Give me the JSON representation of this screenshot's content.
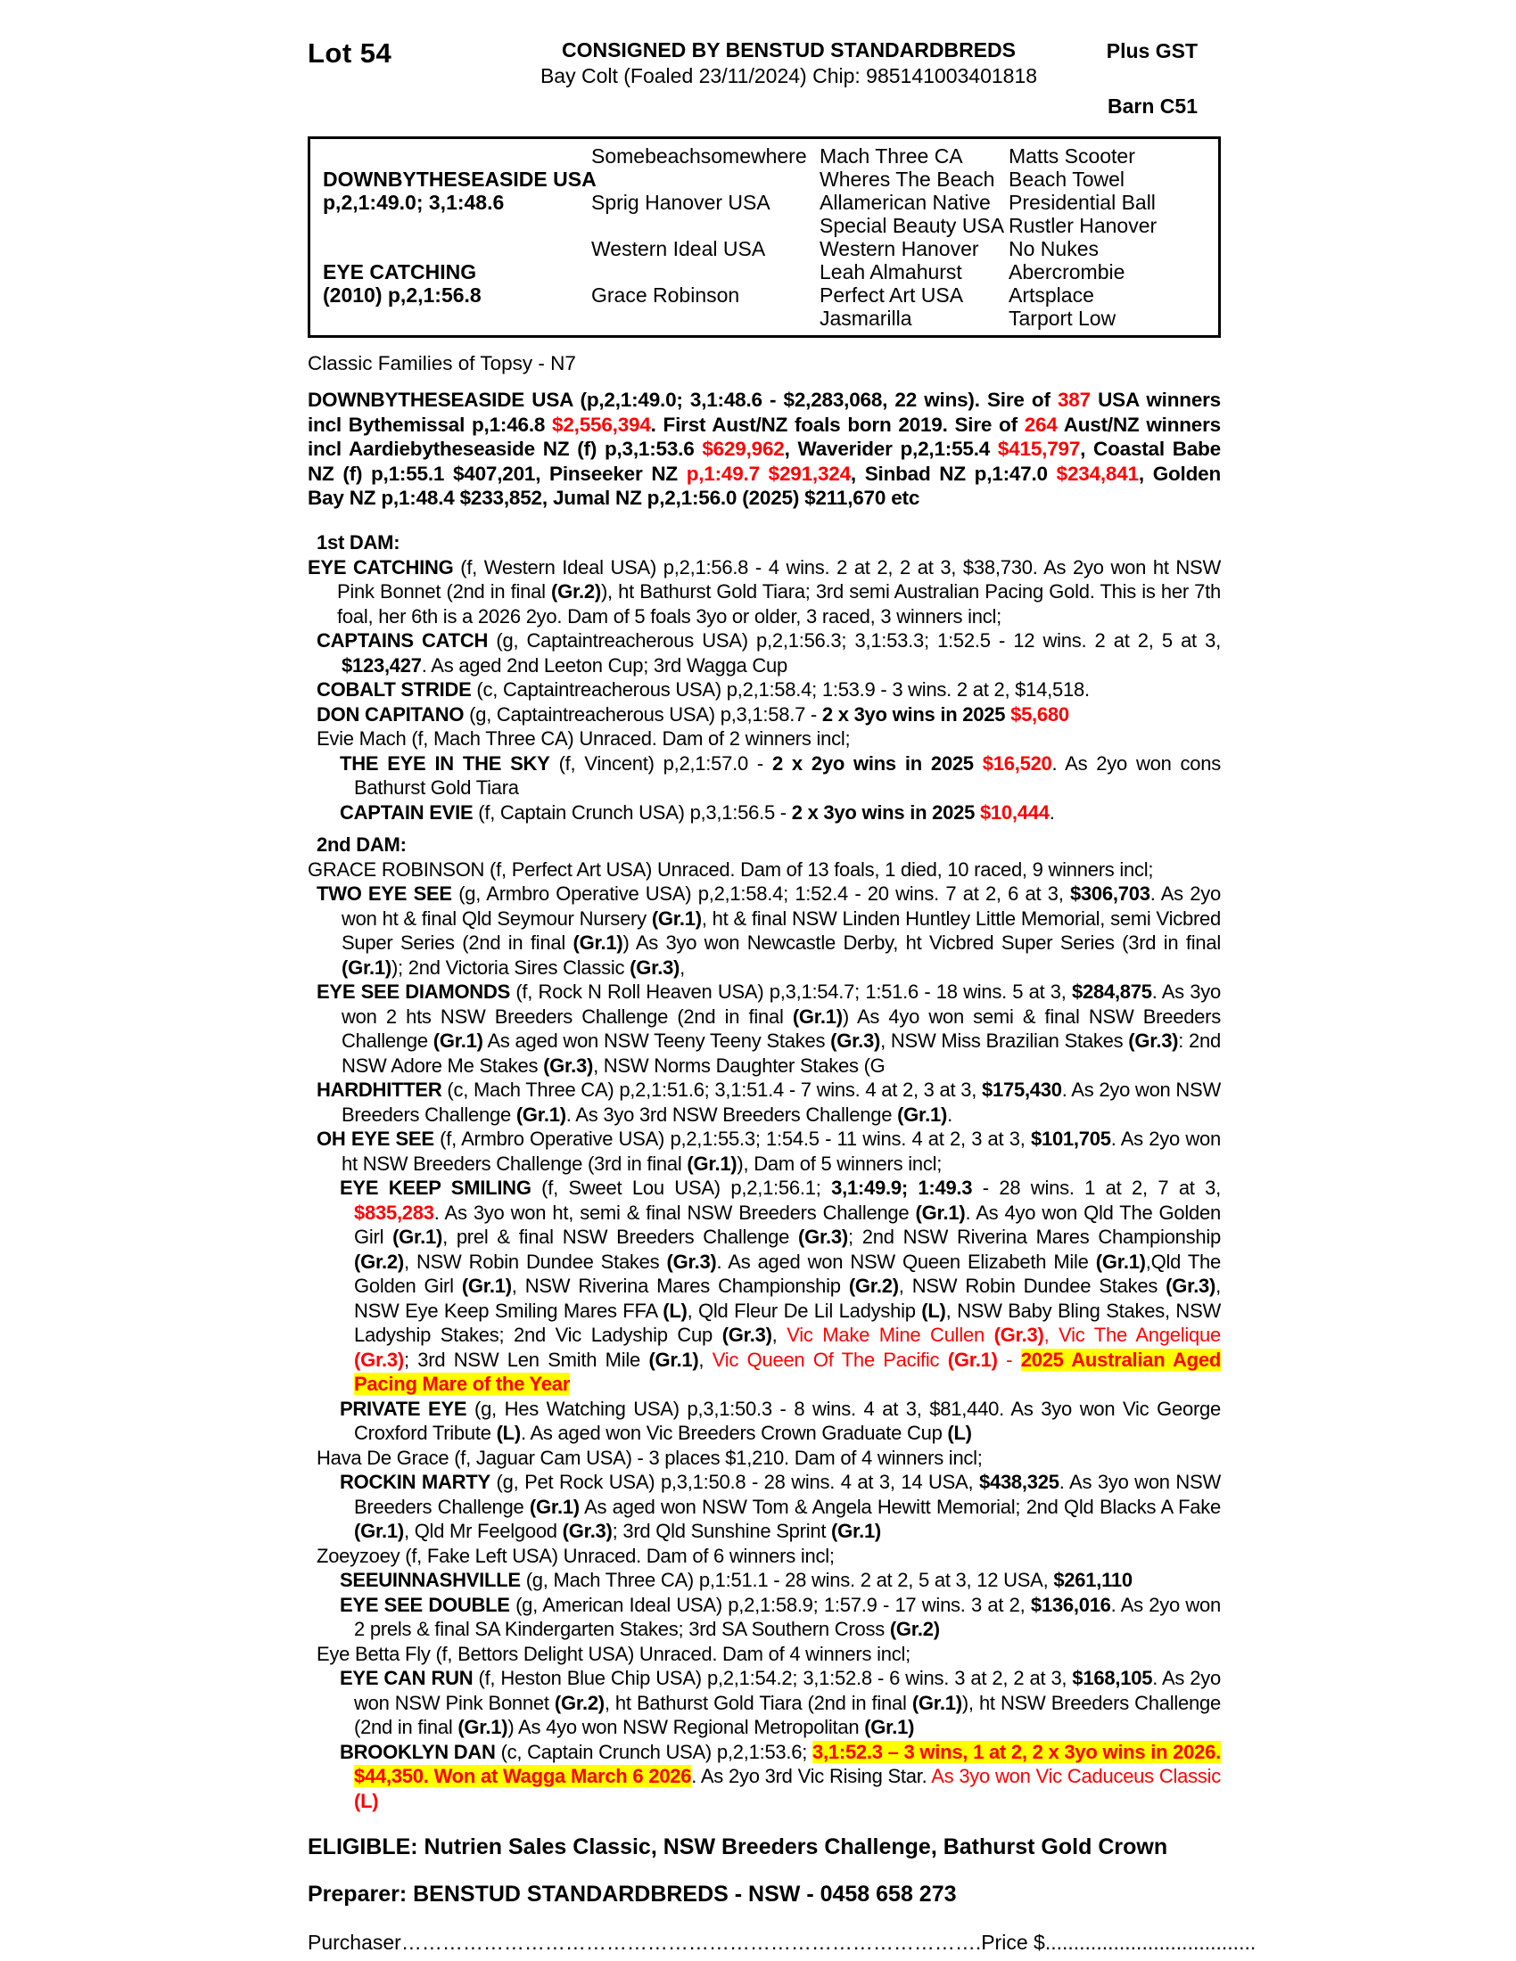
{
  "colors": {
    "text": "#000000",
    "accent_red": "#ff0000",
    "highlight_yellow": "#ffff00"
  },
  "header": {
    "lot": "Lot 54",
    "consigned": "CONSIGNED BY BENSTUD STANDARDBREDS",
    "subtitle": "Bay Colt (Foaled 23/11/2024) Chip: 985141003401818",
    "plus_gst": "Plus GST",
    "barn": "Barn C51"
  },
  "pedigree_box": {
    "rows": [
      [
        "",
        "Somebeachsomewhere",
        "Mach Three CA",
        "Matts Scooter"
      ],
      [
        "DOWNBYTHESEASIDE USA",
        "",
        "Wheres The Beach",
        "Beach Towel"
      ],
      [
        "p,2,1:49.0; 3,1:48.6",
        "Sprig Hanover USA",
        "Allamerican Native",
        "Presidential Ball"
      ],
      [
        "",
        "",
        "Special Beauty USA",
        "Rustler Hanover"
      ],
      [
        "",
        "Western Ideal USA",
        "Western Hanover",
        "No Nukes"
      ],
      [
        "EYE CATCHING",
        "",
        "Leah Almahurst",
        "Abercrombie"
      ],
      [
        "(2010) p,2,1:56.8",
        "Grace Robinson",
        "Perfect Art USA",
        "Artsplace"
      ],
      [
        "",
        "",
        "Jasmarilla",
        "Tarport Low"
      ]
    ]
  },
  "family_line": "Classic Families of Topsy - N7",
  "sire_paragraph": [
    {
      "t": "DOWNBYTHESEASIDE USA (p,2,1:49.0; 3,1:48.6 - $2,283,068, 22 wins). Sire of ",
      "s": "b"
    },
    {
      "t": "387",
      "s": "rb"
    },
    {
      "t": " USA winners incl Bythemissal p,1:46.8 ",
      "s": "b"
    },
    {
      "t": "$2,556,394",
      "s": "rb"
    },
    {
      "t": ". First Aust/NZ foals born 2019. Sire of ",
      "s": "b"
    },
    {
      "t": "264",
      "s": "rb"
    },
    {
      "t": " Aust/NZ winners incl Aardiebytheseaside NZ (f) p,3,1:53.6 ",
      "s": "b"
    },
    {
      "t": "$629,962",
      "s": "rb"
    },
    {
      "t": ", Waverider p,2,1:55.4 ",
      "s": "b"
    },
    {
      "t": "$415,797",
      "s": "rb"
    },
    {
      "t": ", Coastal Babe NZ (f) p,1:55.1 $407,201, Pinseeker NZ ",
      "s": "b"
    },
    {
      "t": "p,1:49.7 $291,324",
      "s": "rb"
    },
    {
      "t": ", Sinbad NZ p,1:47.0 ",
      "s": "b"
    },
    {
      "t": "$234,841",
      "s": "rb"
    },
    {
      "t": ", Golden Bay NZ p,1:48.4 $233,852, Jumal NZ p,2,1:56.0 (2025) $211,670 etc",
      "s": "b"
    }
  ],
  "body": [
    {
      "cls": "hd",
      "spans": [
        {
          "t": "1st DAM:",
          "s": "b"
        }
      ]
    },
    {
      "cls": "l0",
      "spans": [
        {
          "t": "EYE CATCHING",
          "s": "b"
        },
        {
          "t": " (f, Western Ideal USA) p,2,1:56.8 - 4 wins. 2 at 2, 2 at 3, $38,730. As 2yo won ht NSW Pink Bonnet (2nd in final ",
          "s": ""
        },
        {
          "t": "(Gr.2)",
          "s": "b"
        },
        {
          "t": "), ht Bathurst Gold Tiara; 3rd semi Australian Pacing Gold. This is her 7th foal, her 6th is a 2026 2yo. Dam of 5 foals 3yo or older, 3 raced, 3 winners incl;",
          "s": ""
        }
      ]
    },
    {
      "cls": "l1",
      "spans": [
        {
          "t": "CAPTAINS CATCH",
          "s": "b"
        },
        {
          "t": " (g, Captaintreacherous USA) p,2,1:56.3; 3,1:53.3; 1:52.5 - 12 wins. 2 at 2, 5 at 3, ",
          "s": ""
        },
        {
          "t": "$123,427",
          "s": "b"
        },
        {
          "t": ". As aged 2nd Leeton Cup; 3rd Wagga Cup",
          "s": ""
        }
      ]
    },
    {
      "cls": "l1",
      "spans": [
        {
          "t": "COBALT STRIDE",
          "s": "b"
        },
        {
          "t": " (c, Captaintreacherous USA) p,2,1:58.4; 1:53.9 - 3 wins. 2 at 2, $14,518.",
          "s": ""
        }
      ]
    },
    {
      "cls": "l1",
      "spans": [
        {
          "t": "DON CAPITANO",
          "s": "b"
        },
        {
          "t": " (g, Captaintreacherous USA) p,3,1:58.7 - ",
          "s": ""
        },
        {
          "t": "2 x 3yo wins in 2025 ",
          "s": "b"
        },
        {
          "t": "$5,680",
          "s": "rb"
        }
      ]
    },
    {
      "cls": "l1",
      "spans": [
        {
          "t": "Evie Mach (f, Mach Three CA) Unraced. Dam of 2 winners incl;",
          "s": ""
        }
      ]
    },
    {
      "cls": "l2",
      "spans": [
        {
          "t": "THE EYE IN THE SKY",
          "s": "b"
        },
        {
          "t": " (f, Vincent) p,2,1:57.0 - ",
          "s": ""
        },
        {
          "t": "2 x 2yo wins in 2025 ",
          "s": "b"
        },
        {
          "t": "$16,520",
          "s": "rb"
        },
        {
          "t": ". As 2yo won cons Bathurst Gold Tiara",
          "s": ""
        }
      ]
    },
    {
      "cls": "l2",
      "spans": [
        {
          "t": "CAPTAIN EVIE",
          "s": "b"
        },
        {
          "t": " (f, Captain Crunch USA) p,3,1:56.5 - ",
          "s": ""
        },
        {
          "t": "2 x 3yo wins in 2025 ",
          "s": "b"
        },
        {
          "t": "$10,444",
          "s": "rb"
        },
        {
          "t": ".",
          "s": ""
        }
      ]
    },
    {
      "cls": "hd",
      "spans": [
        {
          "t": "2nd DAM:",
          "s": "b"
        }
      ]
    },
    {
      "cls": "l0",
      "spans": [
        {
          "t": "GRACE ROBINSON (f, Perfect Art USA) Unraced. Dam of 13 foals, 1 died, 10 raced, 9 winners incl;",
          "s": ""
        }
      ]
    },
    {
      "cls": "l1",
      "spans": [
        {
          "t": "TWO EYE SEE",
          "s": "b"
        },
        {
          "t": " (g, Armbro Operative USA) p,2,1:58.4; 1:52.4 - 20 wins. 7 at 2, 6 at 3, ",
          "s": ""
        },
        {
          "t": "$306,703",
          "s": "b"
        },
        {
          "t": ". As 2yo won ht & final Qld Seymour Nursery ",
          "s": ""
        },
        {
          "t": "(Gr.1)",
          "s": "b"
        },
        {
          "t": ", ht & final NSW Linden Huntley Little Memorial, semi Vicbred Super Series (2nd in final ",
          "s": ""
        },
        {
          "t": "(Gr.1)",
          "s": "b"
        },
        {
          "t": ") As 3yo won Newcastle Derby, ht Vicbred Super Series (3rd in final ",
          "s": ""
        },
        {
          "t": "(Gr.1)",
          "s": "b"
        },
        {
          "t": "); 2nd Victoria Sires Classic ",
          "s": ""
        },
        {
          "t": "(Gr.3)",
          "s": "b"
        },
        {
          "t": ",",
          "s": ""
        }
      ]
    },
    {
      "cls": "l1",
      "spans": [
        {
          "t": "EYE SEE DIAMONDS",
          "s": "b"
        },
        {
          "t": " (f, Rock N Roll Heaven USA) p,3,1:54.7; 1:51.6 - 18 wins. 5 at 3, ",
          "s": ""
        },
        {
          "t": "$284,875",
          "s": "b"
        },
        {
          "t": ". As 3yo won 2 hts NSW Breeders Challenge (2nd in final ",
          "s": ""
        },
        {
          "t": "(Gr.1)",
          "s": "b"
        },
        {
          "t": ") As 4yo won semi & final NSW Breeders Challenge ",
          "s": ""
        },
        {
          "t": "(Gr.1)",
          "s": "b"
        },
        {
          "t": " As aged won NSW Teeny Teeny Stakes ",
          "s": ""
        },
        {
          "t": "(Gr.3)",
          "s": "b"
        },
        {
          "t": ", NSW Miss Brazilian Stakes ",
          "s": ""
        },
        {
          "t": "(Gr.3)",
          "s": "b"
        },
        {
          "t": ": 2nd NSW Adore Me Stakes ",
          "s": ""
        },
        {
          "t": "(Gr.3)",
          "s": "b"
        },
        {
          "t": ", NSW Norms Daughter Stakes (G",
          "s": ""
        }
      ]
    },
    {
      "cls": "l1",
      "spans": [
        {
          "t": "HARDHITTER",
          "s": "b"
        },
        {
          "t": " (c, Mach Three CA) p,2,1:51.6; 3,1:51.4 - 7 wins. 4 at 2, 3 at 3, ",
          "s": ""
        },
        {
          "t": "$175,430",
          "s": "b"
        },
        {
          "t": ". As 2yo won NSW Breeders Challenge ",
          "s": ""
        },
        {
          "t": "(Gr.1)",
          "s": "b"
        },
        {
          "t": ". As 3yo 3rd NSW Breeders Challenge ",
          "s": ""
        },
        {
          "t": "(Gr.1)",
          "s": "b"
        },
        {
          "t": ".",
          "s": ""
        }
      ]
    },
    {
      "cls": "l1",
      "spans": [
        {
          "t": "OH EYE SEE",
          "s": "b"
        },
        {
          "t": " (f, Armbro Operative USA) p,2,1:55.3; 1:54.5 - 11 wins. 4 at 2, 3 at 3, ",
          "s": ""
        },
        {
          "t": "$101,705",
          "s": "b"
        },
        {
          "t": ". As 2yo won ht NSW Breeders Challenge (3rd in final ",
          "s": ""
        },
        {
          "t": "(Gr.1)",
          "s": "b"
        },
        {
          "t": "), Dam of 5 winners incl;",
          "s": ""
        }
      ]
    },
    {
      "cls": "l2",
      "spans": [
        {
          "t": "EYE KEEP SMILING",
          "s": "b"
        },
        {
          "t": " (f, Sweet Lou USA) p,2,1:56.1; ",
          "s": ""
        },
        {
          "t": "3,1:49.9; 1:49.3",
          "s": "b"
        },
        {
          "t": " - 28 wins. 1 at 2, 7 at 3, ",
          "s": ""
        },
        {
          "t": "$835,283",
          "s": "rb"
        },
        {
          "t": ". As 3yo won ht, semi & final NSW Breeders Challenge ",
          "s": ""
        },
        {
          "t": "(Gr.1)",
          "s": "b"
        },
        {
          "t": ". As 4yo won Qld The Golden Girl ",
          "s": ""
        },
        {
          "t": "(Gr.1)",
          "s": "b"
        },
        {
          "t": ", prel & final NSW Breeders Challenge ",
          "s": ""
        },
        {
          "t": "(Gr.3)",
          "s": "b"
        },
        {
          "t": "; 2nd NSW Riverina Mares Championship ",
          "s": ""
        },
        {
          "t": "(Gr.2)",
          "s": "b"
        },
        {
          "t": ", NSW Robin Dundee Stakes ",
          "s": ""
        },
        {
          "t": "(Gr.3)",
          "s": "b"
        },
        {
          "t": ". As aged won NSW Queen Elizabeth Mile ",
          "s": ""
        },
        {
          "t": "(Gr.1)",
          "s": "b"
        },
        {
          "t": ",Qld The Golden Girl ",
          "s": ""
        },
        {
          "t": "(Gr.1)",
          "s": "b"
        },
        {
          "t": ", NSW Riverina Mares Championship ",
          "s": ""
        },
        {
          "t": "(Gr.2)",
          "s": "b"
        },
        {
          "t": ", NSW Robin Dundee Stakes ",
          "s": ""
        },
        {
          "t": "(Gr.3)",
          "s": "b"
        },
        {
          "t": ", NSW Eye Keep Smiling Mares FFA ",
          "s": ""
        },
        {
          "t": "(L)",
          "s": "b"
        },
        {
          "t": ", Qld Fleur De Lil Ladyship ",
          "s": ""
        },
        {
          "t": "(L)",
          "s": "b"
        },
        {
          "t": ", NSW Baby Bling Stakes, NSW Ladyship Stakes; 2nd Vic Ladyship Cup ",
          "s": ""
        },
        {
          "t": "(Gr.3)",
          "s": "b"
        },
        {
          "t": ", ",
          "s": ""
        },
        {
          "t": "Vic Make Mine Cullen ",
          "s": "r"
        },
        {
          "t": "(Gr.3)",
          "s": "rb"
        },
        {
          "t": ", ",
          "s": "r"
        },
        {
          "t": "Vic The Angelique ",
          "s": "r"
        },
        {
          "t": "(Gr.3)",
          "s": "rb"
        },
        {
          "t": "; 3rd NSW Len Smith Mile ",
          "s": ""
        },
        {
          "t": "(Gr.1)",
          "s": "b"
        },
        {
          "t": ", ",
          "s": ""
        },
        {
          "t": "Vic Queen Of The Pacific ",
          "s": "r"
        },
        {
          "t": "(Gr.1)",
          "s": "rb"
        },
        {
          "t": " - ",
          "s": "r"
        },
        {
          "t": "2025 Australian Aged Pacing Mare of the Year",
          "s": "rbh"
        }
      ]
    },
    {
      "cls": "l2",
      "spans": [
        {
          "t": "PRIVATE EYE",
          "s": "b"
        },
        {
          "t": " (g, Hes Watching USA) p,3,1:50.3 - 8 wins. 4 at 3, $81,440. As 3yo won Vic George Croxford Tribute ",
          "s": ""
        },
        {
          "t": "(L)",
          "s": "b"
        },
        {
          "t": ". As aged won Vic Breeders Crown Graduate Cup ",
          "s": ""
        },
        {
          "t": "(L)",
          "s": "b"
        }
      ]
    },
    {
      "cls": "l1",
      "spans": [
        {
          "t": "Hava De Grace (f, Jaguar Cam USA) - 3 places $1,210. Dam of 4 winners incl;",
          "s": ""
        }
      ]
    },
    {
      "cls": "l2",
      "spans": [
        {
          "t": "ROCKIN MARTY",
          "s": "b"
        },
        {
          "t": " (g, Pet Rock USA) p,3,1:50.8 - 28 wins. 4 at 3, 14 USA, ",
          "s": ""
        },
        {
          "t": "$438,325",
          "s": "b"
        },
        {
          "t": ". As 3yo won NSW Breeders Challenge ",
          "s": ""
        },
        {
          "t": "(Gr.1)",
          "s": "b"
        },
        {
          "t": " As aged won NSW Tom & Angela Hewitt Memorial; 2nd Qld Blacks A Fake ",
          "s": ""
        },
        {
          "t": "(Gr.1)",
          "s": "b"
        },
        {
          "t": ", Qld Mr Feelgood ",
          "s": ""
        },
        {
          "t": "(Gr.3)",
          "s": "b"
        },
        {
          "t": "; 3rd Qld Sunshine Sprint ",
          "s": ""
        },
        {
          "t": "(Gr.1)",
          "s": "b"
        }
      ]
    },
    {
      "cls": "l1",
      "spans": [
        {
          "t": "Zoeyzoey (f, Fake Left USA) Unraced. Dam of 6 winners incl;",
          "s": ""
        }
      ]
    },
    {
      "cls": "l2",
      "spans": [
        {
          "t": "SEEUINNASHVILLE",
          "s": "b"
        },
        {
          "t": " (g, Mach Three CA) p,1:51.1 - 28 wins. 2 at 2, 5 at 3, 12 USA, ",
          "s": ""
        },
        {
          "t": "$261,110",
          "s": "b"
        }
      ]
    },
    {
      "cls": "l2",
      "spans": [
        {
          "t": "EYE SEE DOUBLE",
          "s": "b"
        },
        {
          "t": " (g, American Ideal USA) p,2,1:58.9; 1:57.9 - 17 wins. 3 at 2, ",
          "s": ""
        },
        {
          "t": "$136,016",
          "s": "b"
        },
        {
          "t": ". As 2yo won 2 prels & final SA Kindergarten Stakes; 3rd SA Southern Cross ",
          "s": ""
        },
        {
          "t": "(Gr.2)",
          "s": "b"
        }
      ]
    },
    {
      "cls": "l1",
      "spans": [
        {
          "t": "Eye Betta Fly (f, Bettors Delight USA) Unraced. Dam of 4 winners incl;",
          "s": ""
        }
      ]
    },
    {
      "cls": "l2",
      "spans": [
        {
          "t": "EYE CAN RUN",
          "s": "b"
        },
        {
          "t": " (f, Heston Blue Chip USA) p,2,1:54.2; 3,1:52.8 - 6 wins. 3 at 2, 2 at 3, ",
          "s": ""
        },
        {
          "t": "$168,105",
          "s": "b"
        },
        {
          "t": ". As 2yo won NSW Pink Bonnet ",
          "s": ""
        },
        {
          "t": "(Gr.2)",
          "s": "b"
        },
        {
          "t": ", ht Bathurst Gold Tiara (2nd in final ",
          "s": ""
        },
        {
          "t": "(Gr.1)",
          "s": "b"
        },
        {
          "t": "), ht NSW Breeders Challenge (2nd in final ",
          "s": ""
        },
        {
          "t": "(Gr.1)",
          "s": "b"
        },
        {
          "t": ") As 4yo won NSW Regional Metropolitan ",
          "s": ""
        },
        {
          "t": "(Gr.1)",
          "s": "b"
        }
      ]
    },
    {
      "cls": "l2",
      "spans": [
        {
          "t": "BROOKLYN DAN",
          "s": "b"
        },
        {
          "t": " (c, Captain Crunch USA) p,2,1:53.6; ",
          "s": ""
        },
        {
          "t": "3,1:52.3 – 3 wins, 1 at 2, 2 x 3yo wins in 2026. $44,350. Won at Wagga March 6 2026",
          "s": "rbh"
        },
        {
          "t": ". As 2yo 3rd Vic Rising Star. ",
          "s": ""
        },
        {
          "t": "As 3yo won Vic Caduceus Classic ",
          "s": "r"
        },
        {
          "t": "(L)",
          "s": "rb"
        }
      ]
    }
  ],
  "footer": {
    "eligible": "ELIGIBLE: Nutrien Sales Classic, NSW Breeders Challenge, Bathurst Gold Crown",
    "preparer": "Preparer: BENSTUD STANDARDBREDS - NSW - 0458 658 273",
    "purchaser_label": "Purchaser",
    "purchaser_dots": "………………………………………………………………………….",
    "price_label": "Price $",
    "price_dots": "....................................."
  }
}
